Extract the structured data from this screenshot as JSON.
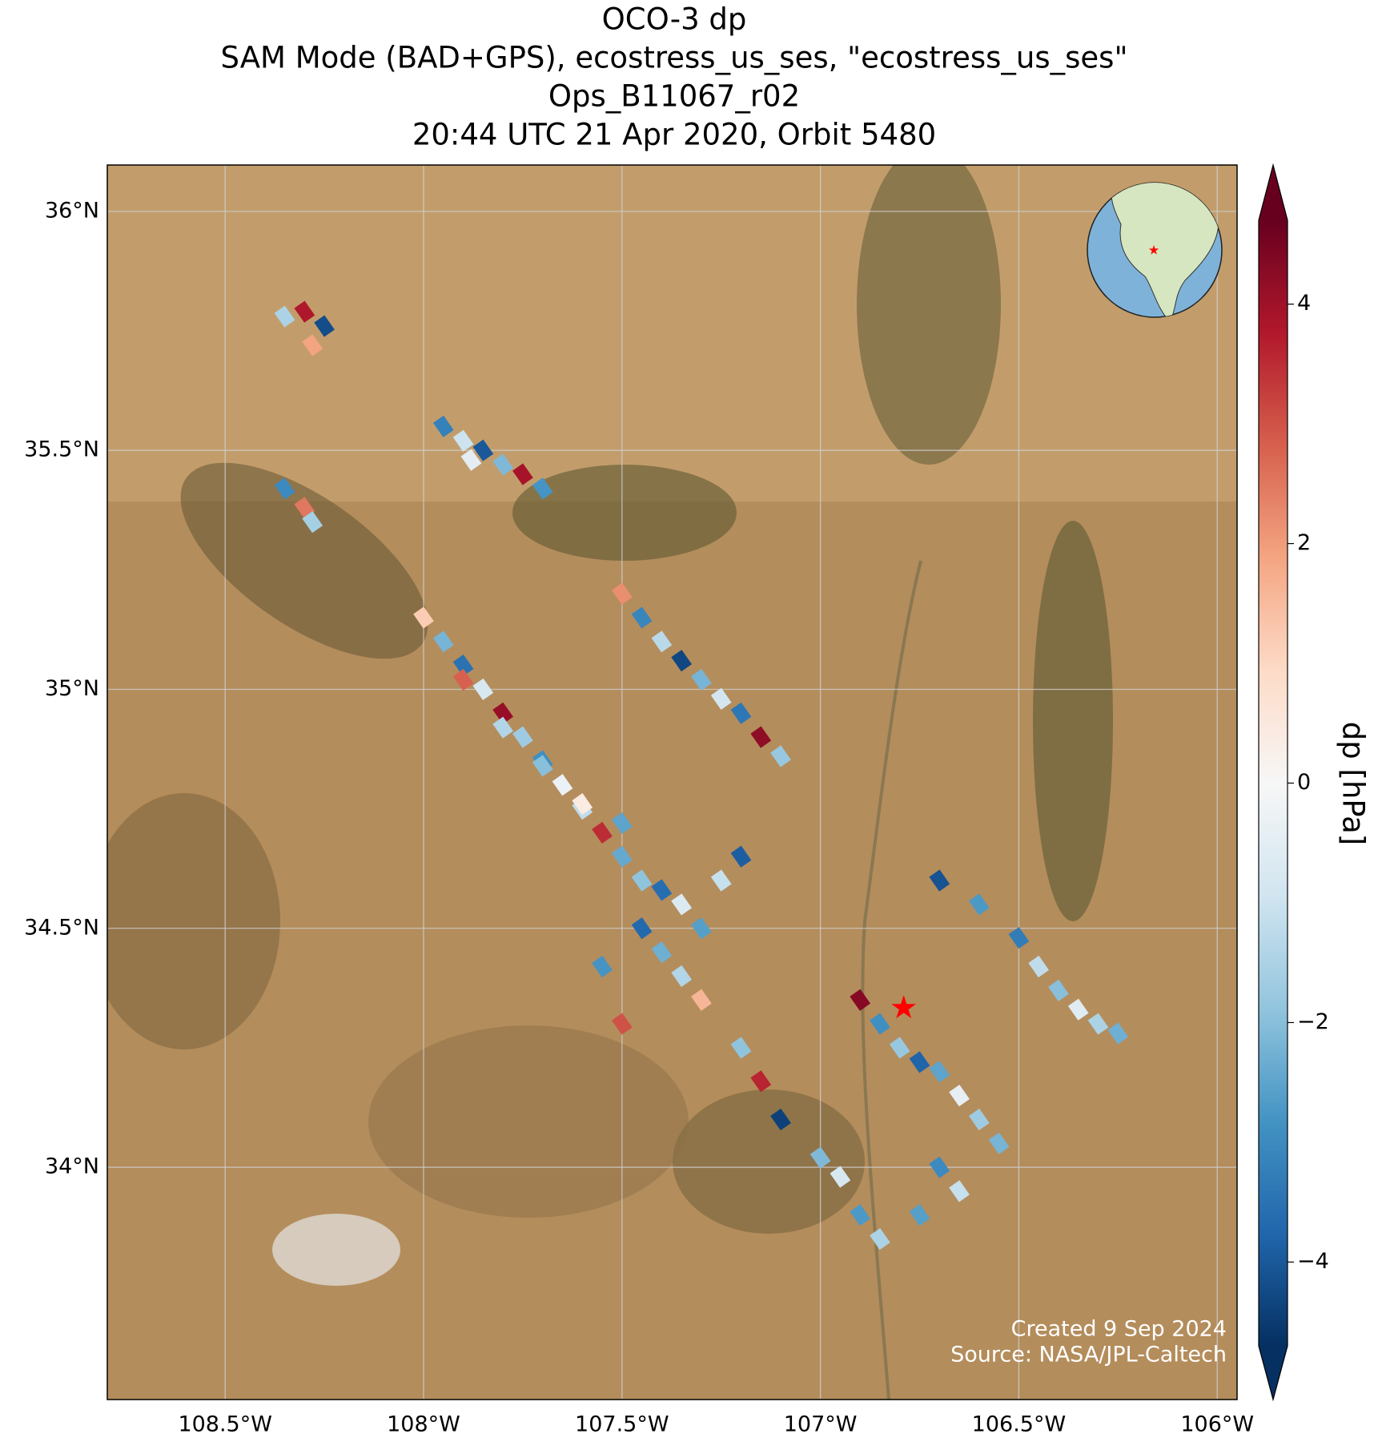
{
  "chart_data": {
    "type": "map-scatter",
    "title": [
      "OCO-3 dp",
      "SAM Mode (BAD+GPS), ecostress_us_ses, \"ecostress_us_ses\"",
      "Ops_B11067_r02",
      "20:44 UTC 21 Apr 2020, Orbit 5480"
    ],
    "xlim": [
      -108.797,
      -105.95
    ],
    "ylim": [
      33.514,
      36.097
    ],
    "xticks": [
      {
        "value": -108.5,
        "label": "108.5°W"
      },
      {
        "value": -108,
        "label": "108°W"
      },
      {
        "value": -107.5,
        "label": "107.5°W"
      },
      {
        "value": -107,
        "label": "107°W"
      },
      {
        "value": -106.5,
        "label": "106.5°W"
      },
      {
        "value": -106,
        "label": "106°W"
      }
    ],
    "yticks": [
      {
        "value": 34,
        "label": "34°N"
      },
      {
        "value": 34.5,
        "label": "34.5°N"
      },
      {
        "value": 35,
        "label": "35°N"
      },
      {
        "value": 35.5,
        "label": "35.5°N"
      },
      {
        "value": 36,
        "label": "36°N"
      }
    ],
    "grid": true,
    "colormap": "RdBu_r",
    "clim": [
      -4.7,
      4.7
    ],
    "colorbar_ticks": [
      {
        "value": -4,
        "label": "−4"
      },
      {
        "value": -2,
        "label": "−2"
      },
      0,
      2,
      4
    ],
    "colorbar_label": "dp [hPa]",
    "lon": [
      -108.35,
      -108.3,
      -108.25,
      -108.28,
      -107.95,
      -107.9,
      -107.85,
      -107.8,
      -107.75,
      -107.7,
      -107.88,
      -108.35,
      -108.3,
      -108.28,
      -108.0,
      -107.95,
      -107.9,
      -107.85,
      -107.8,
      -107.75,
      -107.7,
      -107.65,
      -107.6,
      -107.55,
      -107.5,
      -107.45,
      -107.4,
      -107.35,
      -107.3,
      -107.25,
      -107.2,
      -107.9,
      -107.8,
      -107.7,
      -107.6,
      -107.5,
      -107.5,
      -107.45,
      -107.4,
      -107.35,
      -107.3,
      -107.25,
      -107.2,
      -107.15,
      -107.1,
      -106.7,
      -106.6,
      -106.5,
      -106.45,
      -106.4,
      -106.35,
      -106.3,
      -106.25,
      -106.9,
      -106.85,
      -106.8,
      -106.75,
      -106.7,
      -106.65,
      -106.6,
      -106.55,
      -106.7,
      -106.65,
      -106.75,
      -107.45,
      -107.4,
      -107.35,
      -107.3,
      -107.55,
      -107.5,
      -107.2,
      -107.15,
      -107.1,
      -107.0,
      -106.95,
      -106.9,
      -106.85
    ],
    "lat": [
      35.78,
      35.79,
      35.76,
      35.72,
      35.55,
      35.52,
      35.5,
      35.47,
      35.45,
      35.42,
      35.48,
      35.42,
      35.38,
      35.35,
      35.15,
      35.1,
      35.05,
      35.0,
      34.95,
      34.9,
      34.85,
      34.8,
      34.75,
      34.7,
      34.65,
      34.6,
      34.58,
      34.55,
      34.5,
      34.6,
      34.65,
      35.02,
      34.92,
      34.84,
      34.76,
      34.72,
      35.2,
      35.15,
      35.1,
      35.06,
      35.02,
      34.98,
      34.95,
      34.9,
      34.86,
      34.6,
      34.55,
      34.48,
      34.42,
      34.37,
      34.33,
      34.3,
      34.28,
      34.35,
      34.3,
      34.25,
      34.22,
      34.2,
      34.15,
      34.1,
      34.05,
      34.0,
      33.95,
      33.9,
      34.5,
      34.45,
      34.4,
      34.35,
      34.42,
      34.3,
      34.25,
      34.18,
      34.1,
      34.02,
      33.98,
      33.9,
      33.85
    ],
    "values": [
      -1.5,
      3.8,
      -4.2,
      1.9,
      -3.2,
      -1.0,
      -4.0,
      -2.1,
      3.9,
      -2.8,
      -0.5,
      -3.0,
      2.5,
      -1.6,
      1.2,
      -2.2,
      -3.5,
      -0.8,
      4.1,
      -1.7,
      -2.9,
      -0.3,
      -1.2,
      3.5,
      -2.4,
      -1.9,
      -3.6,
      -0.7,
      -2.6,
      -1.1,
      -3.9,
      2.8,
      -1.4,
      -2.0,
      0.4,
      -2.5,
      2.2,
      -3.1,
      -1.3,
      -4.3,
      -2.2,
      -0.9,
      -3.4,
      4.2,
      -1.8,
      -4.1,
      -2.7,
      -3.3,
      -1.2,
      -2.0,
      -0.6,
      -1.5,
      -2.3,
      4.3,
      -2.9,
      -1.8,
      -3.8,
      -2.5,
      -0.4,
      -1.7,
      -2.2,
      -3.0,
      -1.1,
      -2.6,
      -3.7,
      -2.3,
      -1.4,
      1.6,
      -2.8,
      3.0,
      -1.9,
      3.6,
      -4.4,
      -2.1,
      -0.8,
      -2.7,
      -1.5
    ],
    "target": {
      "lon": -106.79,
      "lat": 34.33
    },
    "credit": [
      "Created 9 Sep 2024",
      "Source: NASA/JPL-Caltech"
    ]
  }
}
